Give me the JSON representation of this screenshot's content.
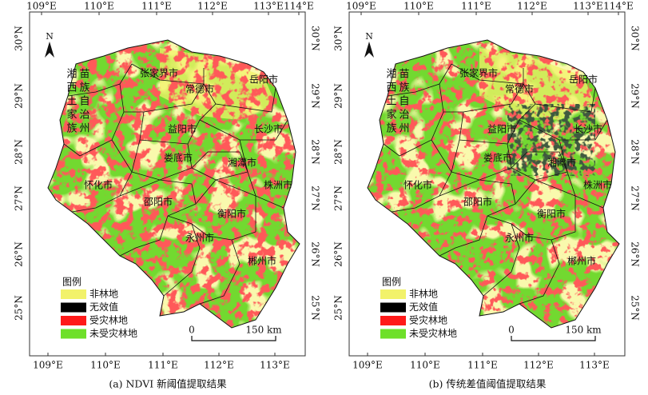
{
  "panels": [
    {
      "caption": "(a) NDVI 新阈值提取结果",
      "lon_labels": [
        "109°E",
        "110°E",
        "111°E",
        "112°E",
        "113°E",
        "114°E"
      ],
      "lat_labels": [
        "30°N",
        "29°N",
        "28°N",
        "27°N",
        "26°N",
        "25°N"
      ],
      "north": "N",
      "cities": [
        "张家界市",
        "湘西土家族",
        "苗族自治州",
        "常德市",
        "岳阳市",
        "益阳市",
        "长沙市",
        "娄底市",
        "湘潭市",
        "怀化市",
        "株洲市",
        "邵阳市",
        "衡阳市",
        "永州市",
        "郴州市"
      ],
      "legend": {
        "title": "图例",
        "items": [
          {
            "label": "非林地",
            "color": "#f2f26a"
          },
          {
            "label": "无效值",
            "color": "#000000"
          },
          {
            "label": "受灾林地",
            "color": "#ff1a1a"
          },
          {
            "label": "未受灾林地",
            "color": "#6ee02a"
          }
        ]
      },
      "scale": {
        "start": "0",
        "end": "150 km"
      }
    },
    {
      "caption": "(b) 传统差值阈值提取结果",
      "lon_labels": [
        "109°E",
        "110°E",
        "111°E",
        "112°E",
        "113°E",
        "114°E"
      ],
      "lat_labels": [
        "30°N",
        "29°N",
        "28°N",
        "27°N",
        "26°N",
        "25°N"
      ],
      "north": "N",
      "cities": [
        "张家界市",
        "湘西土家族",
        "苗族自治州",
        "常德市",
        "岳阳市",
        "益阳市",
        "长沙市",
        "娄底市",
        "湘潭市",
        "怀化市",
        "株洲市",
        "邵阳市",
        "衡阳市",
        "永州市",
        "郴州市"
      ],
      "legend": {
        "title": "图例",
        "items": [
          {
            "label": "非林地",
            "color": "#f2f26a"
          },
          {
            "label": "无效值",
            "color": "#000000"
          },
          {
            "label": "受灾林地",
            "color": "#ff1a1a"
          },
          {
            "label": "未受灾林地",
            "color": "#6ee02a"
          }
        ]
      },
      "scale": {
        "start": "0",
        "end": "150 km"
      }
    }
  ]
}
